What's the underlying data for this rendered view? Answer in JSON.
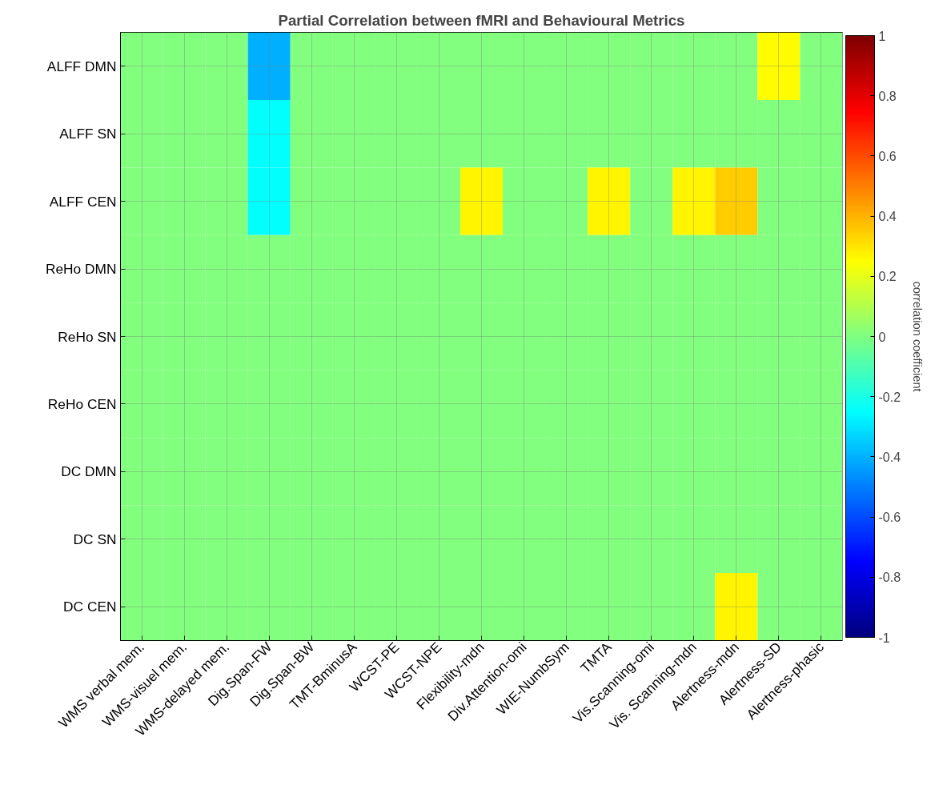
{
  "chart_data": {
    "type": "heatmap",
    "title": "Partial Correlation between fMRI and Behavioural Metrics",
    "clabel": "correlation coefficient",
    "categories": [
      "WMS verbal mem.",
      "WMS-visuel mem.",
      "WMS-delayed mem.",
      "Dig.Span-FW",
      "Dig.Span-BW",
      "TMT-BminusA",
      "WCST-PE",
      "WCST-NPE",
      "Flexibility-mdn",
      "Div.Attention-omi",
      "WIE-NumbSym",
      "TMTA",
      "Vis.Scanning-omi",
      "Vis. Scanning-mdn",
      "Alertness-mdn",
      "Alertness-SD",
      "Alertness-phasic"
    ],
    "y_categories": [
      "ALFF DMN",
      "ALFF SN",
      "ALFF CEN",
      "ReHo DMN",
      "ReHo SN",
      "ReHo CEN",
      "DC DMN",
      "DC SN",
      "DC CEN"
    ],
    "cells": [
      [
        0,
        0,
        0,
        -0.4,
        0,
        0,
        0,
        0,
        0,
        0,
        0,
        0,
        0,
        0,
        0,
        0.25,
        0
      ],
      [
        0,
        0,
        0,
        -0.25,
        0,
        0,
        0,
        0,
        0,
        0,
        0,
        0,
        0,
        0,
        0,
        0,
        0
      ],
      [
        0,
        0,
        0,
        -0.25,
        0,
        0,
        0,
        0,
        0.27,
        0,
        0,
        0.27,
        0,
        0.27,
        0.35,
        0,
        0
      ],
      [
        0,
        0,
        0,
        0,
        0,
        0,
        0,
        0,
        0,
        0,
        0,
        0,
        0,
        0,
        0,
        0,
        0
      ],
      [
        0,
        0,
        0,
        0,
        0,
        0,
        0,
        0,
        0,
        0,
        0,
        0,
        0,
        0,
        0,
        0,
        0
      ],
      [
        0,
        0,
        0,
        0,
        0,
        0,
        0,
        0,
        0,
        0,
        0,
        0,
        0,
        0,
        0,
        0,
        0
      ],
      [
        0,
        0,
        0,
        0,
        0,
        0,
        0,
        0,
        0,
        0,
        0,
        0,
        0,
        0,
        0,
        0,
        0
      ],
      [
        0,
        0,
        0,
        0,
        0,
        0,
        0,
        0,
        0,
        0,
        0,
        0,
        0,
        0,
        0,
        0,
        0
      ],
      [
        0,
        0,
        0,
        0,
        0,
        0,
        0,
        0,
        0,
        0,
        0,
        0,
        0,
        0,
        0.27,
        0,
        0
      ]
    ],
    "clim": [
      -1,
      1
    ],
    "cticks": [
      -1,
      -0.8,
      -0.6,
      -0.4,
      -0.2,
      0,
      0.2,
      0.4,
      0.6,
      0.8,
      1
    ],
    "grid": true
  }
}
